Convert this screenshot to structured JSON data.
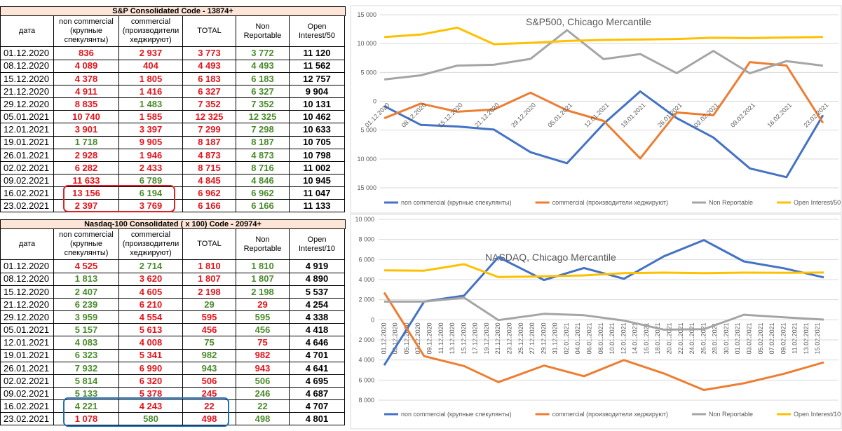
{
  "tables": [
    {
      "title": "S&P Consolidated Code - 13874+",
      "headers": [
        "дата",
        "non commercial (крупные спекулянты)",
        "commercial (производители хеджируют)",
        "TOTAL",
        "Non Reportable",
        "Open Interest/50"
      ],
      "rows": [
        [
          "01.12.2020",
          "836",
          "2 937",
          "3 773",
          "3 772",
          "11 120"
        ],
        [
          "08.12.2020",
          "4 089",
          "404",
          "4 493",
          "4 493",
          "11 562"
        ],
        [
          "15.12.2020",
          "4 378",
          "1 805",
          "6 183",
          "6 183",
          "12 757"
        ],
        [
          "21.12.2020",
          "4 911",
          "1 416",
          "6 327",
          "6 327",
          "9 904"
        ],
        [
          "29.12.2020",
          "8 835",
          "1 483",
          "7 352",
          "7 352",
          "10 131"
        ],
        [
          "05.01.2021",
          "10 740",
          "1 585",
          "12 325",
          "12 325",
          "10 462"
        ],
        [
          "12.01.2021",
          "3 901",
          "3 397",
          "7 299",
          "7 298",
          "10 633"
        ],
        [
          "19.01.2021",
          "1 718",
          "9 905",
          "8 187",
          "8 187",
          "10 705"
        ],
        [
          "26.01.2021",
          "2 928",
          "1 946",
          "4 873",
          "4 873",
          "10 798"
        ],
        [
          "02.02.2021",
          "6 282",
          "2 433",
          "8 715",
          "8 716",
          "11 002"
        ],
        [
          "09.02.2021",
          "11 633",
          "6 789",
          "4 845",
          "4 846",
          "10 945"
        ],
        [
          "16.02.2021",
          "13 156",
          "6 194",
          "6 962",
          "6 962",
          "11 047"
        ],
        [
          "23.02.2021",
          "2 397",
          "3 769",
          "6 166",
          "6 166",
          "11 133"
        ]
      ],
      "colors": [
        [
          "#e5131a",
          "#e5131a",
          "#e5131a",
          "#4a8b2c",
          "#000000"
        ],
        [
          "#e5131a",
          "#e5131a",
          "#e5131a",
          "#4a8b2c",
          "#000000"
        ],
        [
          "#e5131a",
          "#e5131a",
          "#e5131a",
          "#4a8b2c",
          "#000000"
        ],
        [
          "#e5131a",
          "#e5131a",
          "#e5131a",
          "#4a8b2c",
          "#000000"
        ],
        [
          "#e5131a",
          "#4a8b2c",
          "#e5131a",
          "#4a8b2c",
          "#000000"
        ],
        [
          "#e5131a",
          "#e5131a",
          "#e5131a",
          "#4a8b2c",
          "#000000"
        ],
        [
          "#e5131a",
          "#e5131a",
          "#e5131a",
          "#4a8b2c",
          "#000000"
        ],
        [
          "#4a8b2c",
          "#e5131a",
          "#e5131a",
          "#4a8b2c",
          "#000000"
        ],
        [
          "#e5131a",
          "#e5131a",
          "#e5131a",
          "#4a8b2c",
          "#000000"
        ],
        [
          "#e5131a",
          "#e5131a",
          "#e5131a",
          "#4a8b2c",
          "#000000"
        ],
        [
          "#e5131a",
          "#4a8b2c",
          "#e5131a",
          "#4a8b2c",
          "#000000"
        ],
        [
          "#e5131a",
          "#4a8b2c",
          "#e5131a",
          "#4a8b2c",
          "#000000"
        ],
        [
          "#e5131a",
          "#e5131a",
          "#e5131a",
          "#4a8b2c",
          "#000000"
        ]
      ]
    },
    {
      "title": "Nasdaq-100 Consolidated ( x 100) Code - 20974+",
      "headers": [
        "дата",
        "non commercial (крупные спекулянты)",
        "commercial (производители хеджируют)",
        "TOTAL",
        "Non Reportable",
        "Open Interest/10"
      ],
      "rows": [
        [
          "01.12.2020",
          "4 525",
          "2 714",
          "1 810",
          "1 810",
          "4 919"
        ],
        [
          "08.12.2020",
          "1 813",
          "3 620",
          "1 807",
          "1 807",
          "4 890"
        ],
        [
          "15.12.2020",
          "2 407",
          "4 605",
          "2 198",
          "2 198",
          "5 537"
        ],
        [
          "21.12.2020",
          "6 239",
          "6 210",
          "29",
          "29",
          "4 254"
        ],
        [
          "29.12.2020",
          "3 959",
          "4 554",
          "595",
          "595",
          "4 338"
        ],
        [
          "05.01.2021",
          "5 157",
          "5 613",
          "456",
          "456",
          "4 418"
        ],
        [
          "12.01.2021",
          "4 083",
          "4 008",
          "75",
          "75",
          "4 646"
        ],
        [
          "19.01.2021",
          "6 323",
          "5 341",
          "982",
          "982",
          "4 701"
        ],
        [
          "26.01.2021",
          "7 932",
          "6 990",
          "943",
          "943",
          "4 641"
        ],
        [
          "02.02.2021",
          "5 814",
          "6 320",
          "506",
          "506",
          "4 695"
        ],
        [
          "09.02.2021",
          "5 133",
          "5 378",
          "245",
          "246",
          "4 687"
        ],
        [
          "16.02.2021",
          "4 221",
          "4 243",
          "22",
          "22",
          "4 707"
        ],
        [
          "23.02.2021",
          "1 078",
          "580",
          "498",
          "498",
          "4 801"
        ]
      ],
      "colors": [
        [
          "#e5131a",
          "#4a8b2c",
          "#e5131a",
          "#4a8b2c",
          "#000000"
        ],
        [
          "#4a8b2c",
          "#e5131a",
          "#e5131a",
          "#4a8b2c",
          "#000000"
        ],
        [
          "#4a8b2c",
          "#e5131a",
          "#e5131a",
          "#4a8b2c",
          "#000000"
        ],
        [
          "#4a8b2c",
          "#e5131a",
          "#4a8b2c",
          "#e5131a",
          "#000000"
        ],
        [
          "#4a8b2c",
          "#e5131a",
          "#e5131a",
          "#4a8b2c",
          "#000000"
        ],
        [
          "#4a8b2c",
          "#e5131a",
          "#e5131a",
          "#4a8b2c",
          "#000000"
        ],
        [
          "#4a8b2c",
          "#e5131a",
          "#4a8b2c",
          "#e5131a",
          "#000000"
        ],
        [
          "#4a8b2c",
          "#e5131a",
          "#4a8b2c",
          "#e5131a",
          "#000000"
        ],
        [
          "#4a8b2c",
          "#e5131a",
          "#4a8b2c",
          "#e5131a",
          "#000000"
        ],
        [
          "#4a8b2c",
          "#e5131a",
          "#e5131a",
          "#4a8b2c",
          "#000000"
        ],
        [
          "#4a8b2c",
          "#e5131a",
          "#e5131a",
          "#4a8b2c",
          "#000000"
        ],
        [
          "#4a8b2c",
          "#e5131a",
          "#e5131a",
          "#4a8b2c",
          "#000000"
        ],
        [
          "#e5131a",
          "#4a8b2c",
          "#e5131a",
          "#4a8b2c",
          "#000000"
        ]
      ]
    }
  ],
  "chart_data": [
    {
      "type": "line",
      "title": "S&P500, Chicago Mercantile",
      "categories": [
        "01.12.2020",
        "08.12.2020",
        "15.12.2020",
        "21.12.2020",
        "29.12.2020",
        "05.01.2021",
        "12.01.2021",
        "19.01.2021",
        "26.01.2021",
        "02.02.2021",
        "09.02.2021",
        "16.02.2021",
        "23.02.2021"
      ],
      "series": [
        {
          "name": "non commercial  (крупные спекулянты)",
          "color": "#4472c4",
          "values": [
            -836,
            -4089,
            -4378,
            -4911,
            -8835,
            -10740,
            -3901,
            1718,
            -2928,
            -6282,
            -11633,
            -13156,
            -2397
          ]
        },
        {
          "name": "commercial (производители хеджируют)",
          "color": "#ed7d31",
          "values": [
            -2937,
            -404,
            -1805,
            -1416,
            1483,
            -1585,
            -3397,
            -9905,
            -1946,
            -2433,
            6789,
            6194,
            -3769
          ]
        },
        {
          "name": "Non Reportable",
          "color": "#a5a5a5",
          "values": [
            3772,
            4493,
            6183,
            6327,
            7352,
            12325,
            7298,
            8187,
            4873,
            8716,
            4846,
            6962,
            6166
          ]
        },
        {
          "name": "Open Interest/50",
          "color": "#ffc000",
          "values": [
            11120,
            11562,
            12757,
            9904,
            10131,
            10462,
            10633,
            10705,
            10798,
            11002,
            10945,
            11047,
            11133
          ]
        }
      ],
      "ylim": [
        -15000,
        15000
      ],
      "yticks": [
        {
          "value": 15000,
          "label": "15 000"
        },
        {
          "value": 10000,
          "label": "10 000"
        },
        {
          "value": 5000,
          "label": "5 000"
        },
        0,
        {
          "value": -5000,
          "label": "5 000"
        },
        {
          "value": -10000,
          "label": "10 000"
        },
        {
          "value": -15000,
          "label": "15 000"
        }
      ],
      "grid": true,
      "legend": "bottom"
    },
    {
      "type": "line",
      "title": "NASDAQ, Chicago Mercantile",
      "x": [
        "01.12.2020",
        "08.12.2020",
        "15.12.2020",
        "21.12.2020",
        "29.12.2020",
        "05.01.2021",
        "12.01.2021",
        "19.01.2021",
        "26.01.2021",
        "02.02.2021",
        "09.02.2021",
        "16.02.2021"
      ],
      "xlim": [
        "01.12.2020",
        "16.02.2021"
      ],
      "xticks": [
        "01.12.2020",
        "03.12.2020",
        "05.12.2020",
        "07.12.2020",
        "09.12.2020",
        "11.12.2020",
        "13.12.2020",
        "15.12.2020",
        "17.12.2020",
        "19.12.2020",
        "21.12.2020",
        "23.12.2020",
        "25.12.2020",
        "27.12.2020",
        "29.12.2020",
        "31.12.2020",
        "02.01.2021",
        "04.01.2021",
        "06.01.2021",
        "08.01.2021",
        "10.01.2021",
        "12.01.2021",
        "14.01.2021",
        "16.01.2021",
        "18.01.2021",
        "20.01.2021",
        "22.01.2021",
        "24.01.2021",
        "26.01.2021",
        "28.01.2021",
        "30.01.2021",
        "01.02.2021",
        "03.02.2021",
        "05.02.2021",
        "07.02.2021",
        "09.02.2021",
        "11.02.2021",
        "13.02.2021",
        "15.02.2021"
      ],
      "series": [
        {
          "name": "non commercial  (крупные спекулянты)",
          "color": "#4472c4",
          "values": [
            -4525,
            1813,
            2407,
            6239,
            3959,
            5157,
            4083,
            6323,
            7932,
            5814,
            5133,
            4221
          ]
        },
        {
          "name": "commercial (производители хеджируют)",
          "color": "#ed7d31",
          "values": [
            2714,
            -3620,
            -4605,
            -6210,
            -4554,
            -5613,
            -4008,
            -5341,
            -6990,
            -6320,
            -5378,
            -4243
          ]
        },
        {
          "name": "Non Reportable",
          "color": "#a5a5a5",
          "values": [
            1810,
            1807,
            2198,
            -29,
            595,
            456,
            -75,
            -982,
            -943,
            506,
            246,
            22
          ]
        },
        {
          "name": "Open Interest/10",
          "color": "#ffc000",
          "values": [
            4919,
            4890,
            5537,
            4254,
            4338,
            4418,
            4646,
            4701,
            4641,
            4695,
            4687,
            4707
          ]
        }
      ],
      "ylim": [
        -8000,
        10000
      ],
      "yticks": [
        {
          "value": 10000,
          "label": "10 000"
        },
        {
          "value": 8000,
          "label": "8 000"
        },
        {
          "value": 6000,
          "label": "6 000"
        },
        {
          "value": 4000,
          "label": "4 000"
        },
        {
          "value": 2000,
          "label": "2 000"
        },
        0,
        {
          "value": -2000,
          "label": "2 000"
        },
        {
          "value": -4000,
          "label": "4 000"
        },
        {
          "value": -6000,
          "label": "6 000"
        },
        {
          "value": -8000,
          "label": "8 000"
        }
      ],
      "grid": true,
      "legend": "bottom"
    }
  ]
}
